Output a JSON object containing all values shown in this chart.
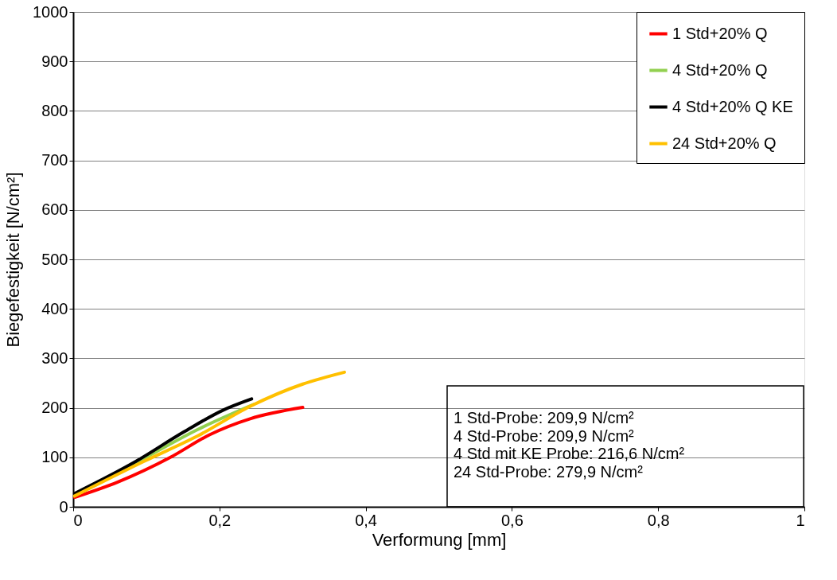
{
  "chart_data": {
    "type": "line",
    "xlabel": "Verformung [mm]",
    "ylabel": "Biegefestigkeit [N/cm²]",
    "xlim": [
      0,
      1
    ],
    "xticks": [
      0,
      {
        "value": 0.2,
        "label": "0,2"
      },
      {
        "value": 0.4,
        "label": "0,4"
      },
      {
        "value": 0.6,
        "label": "0,6"
      },
      {
        "value": 0.8,
        "label": "0,8"
      },
      1
    ],
    "ylim": [
      0,
      1000
    ],
    "yticks": [
      0,
      100,
      200,
      300,
      400,
      500,
      600,
      700,
      800,
      900,
      1000
    ],
    "grid": "y",
    "legend": "top right",
    "line_style": "solid",
    "marker": "none",
    "series": [
      {
        "name": "1 Std+20% Q",
        "color": "#ff0000",
        "x": [
          0.002,
          0.061,
          0.133,
          0.187,
          0.242,
          0.314
        ],
        "values": [
          19,
          50,
          100,
          146,
          178,
          201
        ]
      },
      {
        "name": "4 Std+20% Q",
        "color": "#92d050",
        "x": [
          0.002,
          0.097,
          0.17,
          0.247
        ],
        "values": [
          22,
          98,
          156,
          207
        ]
      },
      {
        "name": "4 Std+20% Q KE",
        "color": "#000000",
        "x": [
          0.002,
          0.086,
          0.151,
          0.206,
          0.244
        ],
        "values": [
          27,
          92,
          151,
          196,
          218
        ]
      },
      {
        "name": "24 Std+20% Q",
        "color": "#ffc000",
        "x": [
          0.002,
          0.097,
          0.17,
          0.242,
          0.314,
          0.371
        ],
        "values": [
          22,
          92,
          143,
          203,
          248,
          272
        ]
      }
    ],
    "annotations": [
      "1 Std-Probe: 209,9 N/cm²",
      "4 Std-Probe: 209,9 N/cm²",
      "4 Std mit KE Probe: 216,6 N/cm²",
      "24 Std-Probe: 279,9 N/cm²"
    ]
  }
}
